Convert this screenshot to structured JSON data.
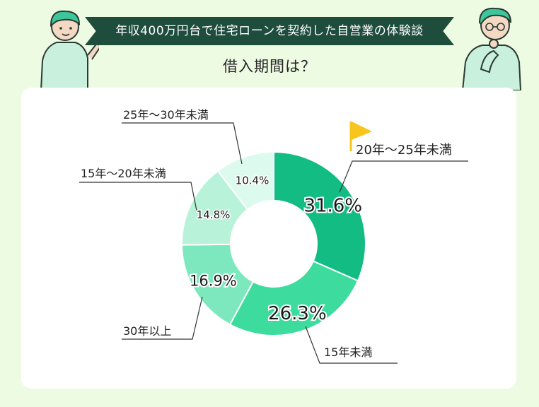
{
  "header": {
    "banner_title": "年収400万円台で住宅ローンを契約した自営業の体験談",
    "question": "借入期間は？"
  },
  "chart_data": {
    "type": "pie",
    "donut": true,
    "slices": [
      {
        "label": "20年〜25年未満",
        "value": 31.6,
        "display": "31.6%",
        "color": "#12bc83"
      },
      {
        "label": "15年未満",
        "value": 26.3,
        "display": "26.3%",
        "color": "#3ddc9e"
      },
      {
        "label": "30年以上",
        "value": 16.9,
        "display": "16.9%",
        "color": "#7de8bd"
      },
      {
        "label": "15年〜20年未満",
        "value": 14.8,
        "display": "14.8%",
        "color": "#b8f3d9"
      },
      {
        "label": "25年〜30年未満",
        "value": 10.4,
        "display": "10.4%",
        "color": "#dcfaee"
      }
    ],
    "highlight": "20年〜25年未満",
    "highlight_icon": "flag-icon"
  },
  "colors": {
    "background": "#eefbe3",
    "banner": "#1f4d3b",
    "flag": "#f7c51c",
    "leader_line": "#333333"
  },
  "icons": [
    "person-pointing-icon",
    "person-thinking-icon",
    "flag-icon"
  ]
}
